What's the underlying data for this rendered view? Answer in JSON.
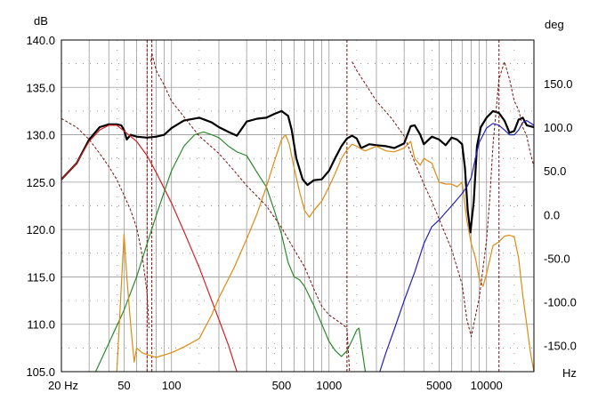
{
  "chart_data": {
    "type": "line",
    "title": "",
    "x_axis": {
      "scale": "log",
      "unit_label": "Hz",
      "range": [
        20,
        20000
      ],
      "tick_labels": [
        {
          "value": 20,
          "label": "20 Hz"
        },
        {
          "value": 50,
          "label": "50"
        },
        {
          "value": 100,
          "label": "100"
        },
        {
          "value": 500,
          "label": "500"
        },
        {
          "value": 1000,
          "label": "1000"
        },
        {
          "value": 5000,
          "label": "5000"
        },
        {
          "value": 10000,
          "label": "10000"
        }
      ]
    },
    "y_left": {
      "unit_label": "dB",
      "range": [
        105,
        140
      ],
      "tick_labels": [
        {
          "value": 140,
          "label": "140.0"
        },
        {
          "value": 135,
          "label": "135.0"
        },
        {
          "value": 130,
          "label": "130.0"
        },
        {
          "value": 125,
          "label": "125.0"
        },
        {
          "value": 120,
          "label": "120.0"
        },
        {
          "value": 115,
          "label": "115.0"
        },
        {
          "value": 110,
          "label": "110.0"
        },
        {
          "value": 105,
          "label": "105.0"
        }
      ]
    },
    "y_right": {
      "unit_label": "deg",
      "range": [
        -180,
        200
      ],
      "tick_labels": [
        {
          "value": 150,
          "label": "150.0"
        },
        {
          "value": 100,
          "label": "100.0"
        },
        {
          "value": 50,
          "label": "50.0"
        },
        {
          "value": 0,
          "label": "0.0"
        },
        {
          "value": -50,
          "label": "-50.0"
        },
        {
          "value": -100,
          "label": "-100.0"
        },
        {
          "value": -150,
          "label": "-150.0"
        }
      ]
    },
    "grid": true,
    "markers_hz": [
      70,
      75,
      1300,
      12000
    ],
    "series": [
      {
        "color": "#000000",
        "axis": "left",
        "style": "solid",
        "width": 2.2,
        "points": [
          [
            20,
            125.3
          ],
          [
            25,
            127
          ],
          [
            30,
            129.5
          ],
          [
            35,
            130.8
          ],
          [
            40,
            131.1
          ],
          [
            45,
            131.1
          ],
          [
            48,
            131.0
          ],
          [
            50,
            130.5
          ],
          [
            52,
            129.5
          ],
          [
            55,
            130.0
          ],
          [
            60,
            129.8
          ],
          [
            70,
            129.7
          ],
          [
            80,
            129.8
          ],
          [
            90,
            130.0
          ],
          [
            100,
            130.7
          ],
          [
            120,
            131.5
          ],
          [
            150,
            131.8
          ],
          [
            180,
            131.3
          ],
          [
            200,
            130.8
          ],
          [
            230,
            130.3
          ],
          [
            260,
            129.9
          ],
          [
            300,
            131.4
          ],
          [
            350,
            131.7
          ],
          [
            400,
            131.8
          ],
          [
            450,
            132.2
          ],
          [
            500,
            132.5
          ],
          [
            550,
            132.0
          ],
          [
            580,
            130.5
          ],
          [
            620,
            127.5
          ],
          [
            680,
            125.3
          ],
          [
            730,
            124.7
          ],
          [
            800,
            125.2
          ],
          [
            900,
            125.3
          ],
          [
            1000,
            126.2
          ],
          [
            1100,
            127.6
          ],
          [
            1200,
            128.8
          ],
          [
            1300,
            129.6
          ],
          [
            1400,
            129.9
          ],
          [
            1500,
            129.6
          ],
          [
            1600,
            128.6
          ],
          [
            1700,
            128.8
          ],
          [
            1800,
            129.0
          ],
          [
            2000,
            128.9
          ],
          [
            2300,
            128.8
          ],
          [
            2600,
            128.6
          ],
          [
            3000,
            129.1
          ],
          [
            3300,
            130.9
          ],
          [
            3500,
            131.0
          ],
          [
            3800,
            130.0
          ],
          [
            4000,
            129.0
          ],
          [
            4500,
            129.8
          ],
          [
            5000,
            129.5
          ],
          [
            5500,
            128.9
          ],
          [
            6000,
            129.7
          ],
          [
            6500,
            129.5
          ],
          [
            7000,
            129.0
          ],
          [
            7300,
            126.5
          ],
          [
            7600,
            122.0
          ],
          [
            7900,
            119.7
          ],
          [
            8300,
            123.0
          ],
          [
            8700,
            128.8
          ],
          [
            9200,
            130.8
          ],
          [
            10000,
            131.8
          ],
          [
            11000,
            132.5
          ],
          [
            12000,
            132.3
          ],
          [
            13000,
            131.5
          ],
          [
            14000,
            130.2
          ],
          [
            15000,
            130.4
          ],
          [
            16000,
            131.6
          ],
          [
            17000,
            131.8
          ],
          [
            18000,
            131.0
          ],
          [
            20000,
            130.8
          ]
        ]
      },
      {
        "color": "#d62020",
        "axis": "left",
        "style": "solid",
        "width": 1.2,
        "points": [
          [
            20,
            125.3
          ],
          [
            25,
            127.0
          ],
          [
            30,
            129.3
          ],
          [
            35,
            130.5
          ],
          [
            40,
            131.0
          ],
          [
            45,
            131.0
          ],
          [
            50,
            130.4
          ],
          [
            60,
            129.3
          ],
          [
            70,
            127.8
          ],
          [
            80,
            126.0
          ],
          [
            100,
            122.8
          ],
          [
            120,
            119.8
          ],
          [
            150,
            116.0
          ],
          [
            180,
            112.5
          ],
          [
            200,
            110.5
          ],
          [
            230,
            107.8
          ],
          [
            260,
            105.0
          ]
        ]
      },
      {
        "color": "#2a8a2a",
        "axis": "left",
        "style": "solid",
        "width": 1.2,
        "points": [
          [
            33,
            105.0
          ],
          [
            40,
            108.0
          ],
          [
            50,
            111.5
          ],
          [
            60,
            115.0
          ],
          [
            70,
            118.5
          ],
          [
            80,
            121.5
          ],
          [
            90,
            124.0
          ],
          [
            100,
            126.2
          ],
          [
            120,
            128.8
          ],
          [
            140,
            130.0
          ],
          [
            160,
            130.3
          ],
          [
            180,
            130.0
          ],
          [
            200,
            129.7
          ],
          [
            230,
            128.8
          ],
          [
            260,
            128.2
          ],
          [
            300,
            127.8
          ],
          [
            350,
            126.0
          ],
          [
            400,
            124.5
          ],
          [
            450,
            122.0
          ],
          [
            500,
            119.5
          ],
          [
            550,
            116.5
          ],
          [
            600,
            115.0
          ],
          [
            650,
            114.7
          ],
          [
            700,
            114.0
          ],
          [
            800,
            112.0
          ],
          [
            900,
            110.0
          ],
          [
            1000,
            108.2
          ],
          [
            1100,
            107.2
          ],
          [
            1200,
            106.6
          ],
          [
            1300,
            107.2
          ],
          [
            1400,
            108.3
          ],
          [
            1500,
            109.4
          ],
          [
            1550,
            109.6
          ],
          [
            1600,
            108.0
          ],
          [
            1700,
            105.0
          ]
        ]
      },
      {
        "color": "#e08a10",
        "axis": "left",
        "style": "solid",
        "width": 1.2,
        "points": [
          [
            45,
            105.0
          ],
          [
            48,
            114.0
          ],
          [
            50,
            119.5
          ],
          [
            52,
            115.0
          ],
          [
            55,
            110.0
          ],
          [
            58,
            106.0
          ],
          [
            60,
            107.5
          ],
          [
            65,
            107.0
          ],
          [
            70,
            106.8
          ],
          [
            80,
            106.5
          ],
          [
            100,
            107.0
          ],
          [
            120,
            107.6
          ],
          [
            150,
            108.5
          ],
          [
            180,
            111.0
          ],
          [
            200,
            112.8
          ],
          [
            250,
            116.0
          ],
          [
            300,
            119.0
          ],
          [
            350,
            121.7
          ],
          [
            400,
            124.5
          ],
          [
            450,
            127.2
          ],
          [
            500,
            129.5
          ],
          [
            530,
            130.0
          ],
          [
            560,
            129.0
          ],
          [
            600,
            126.5
          ],
          [
            650,
            124.0
          ],
          [
            700,
            122.0
          ],
          [
            750,
            121.3
          ],
          [
            800,
            122.0
          ],
          [
            900,
            123.0
          ],
          [
            1000,
            124.5
          ],
          [
            1100,
            126.0
          ],
          [
            1200,
            127.5
          ],
          [
            1300,
            128.4
          ],
          [
            1400,
            129.0
          ],
          [
            1500,
            128.8
          ],
          [
            1600,
            128.5
          ],
          [
            1700,
            128.3
          ],
          [
            2000,
            128.8
          ],
          [
            2300,
            128.3
          ],
          [
            2600,
            128.2
          ],
          [
            3000,
            128.6
          ],
          [
            3300,
            129.3
          ],
          [
            3500,
            127.5
          ],
          [
            3800,
            126.8
          ],
          [
            4000,
            127.5
          ],
          [
            4500,
            127.0
          ],
          [
            5000,
            125.0
          ],
          [
            5500,
            124.8
          ],
          [
            6000,
            124.8
          ],
          [
            6500,
            124.5
          ],
          [
            7000,
            125.0
          ],
          [
            7500,
            121.0
          ],
          [
            8000,
            118.5
          ],
          [
            8500,
            117.0
          ],
          [
            9000,
            114.8
          ],
          [
            9500,
            114.0
          ],
          [
            10000,
            115.3
          ],
          [
            11000,
            118.3
          ],
          [
            12000,
            118.7
          ],
          [
            13000,
            119.3
          ],
          [
            14000,
            119.4
          ],
          [
            15000,
            119.2
          ],
          [
            16000,
            117.0
          ],
          [
            17000,
            113.0
          ],
          [
            18000,
            110.0
          ],
          [
            19000,
            107.0
          ],
          [
            20000,
            105.0
          ]
        ]
      },
      {
        "color": "#2020c0",
        "axis": "left",
        "style": "solid",
        "width": 1.2,
        "points": [
          [
            2100,
            105.0
          ],
          [
            2300,
            107.0
          ],
          [
            2600,
            109.5
          ],
          [
            3000,
            112.5
          ],
          [
            3500,
            115.5
          ],
          [
            4000,
            118.5
          ],
          [
            4500,
            120.3
          ],
          [
            5000,
            121.0
          ],
          [
            5500,
            121.8
          ],
          [
            6000,
            122.5
          ],
          [
            7000,
            123.8
          ],
          [
            7500,
            124.5
          ],
          [
            8000,
            125.5
          ],
          [
            8500,
            127.5
          ],
          [
            9000,
            129.2
          ],
          [
            10000,
            130.7
          ],
          [
            11000,
            131.2
          ],
          [
            12000,
            131.0
          ],
          [
            13000,
            130.5
          ],
          [
            14000,
            130.0
          ],
          [
            15000,
            130.0
          ],
          [
            16000,
            130.5
          ],
          [
            17000,
            131.3
          ],
          [
            18000,
            131.5
          ],
          [
            20000,
            131.0
          ]
        ]
      },
      {
        "color": "#7a1010",
        "axis": "right",
        "style": "dashed",
        "width": 1.0,
        "points": [
          [
            20,
            110
          ],
          [
            25,
            100
          ],
          [
            30,
            86
          ],
          [
            35,
            70
          ],
          [
            40,
            55
          ],
          [
            45,
            40
          ],
          [
            50,
            22
          ],
          [
            55,
            5
          ],
          [
            60,
            -15
          ],
          [
            65,
            -45
          ],
          [
            70,
            -90
          ],
          [
            72,
            -130
          ],
          [
            74,
            175
          ],
          [
            75,
            185
          ],
          [
            80,
            165
          ],
          [
            90,
            148
          ],
          [
            100,
            130
          ],
          [
            120,
            112
          ],
          [
            150,
            90
          ],
          [
            200,
            70
          ],
          [
            250,
            50
          ],
          [
            300,
            33
          ],
          [
            400,
            10
          ],
          [
            500,
            -15
          ],
          [
            600,
            -40
          ],
          [
            700,
            -60
          ],
          [
            800,
            -85
          ],
          [
            900,
            -105
          ],
          [
            1000,
            -115
          ],
          [
            1200,
            -125
          ],
          [
            1300,
            -130
          ],
          [
            1350,
            -180
          ],
          [
            1400,
            175
          ],
          [
            1500,
            165
          ],
          [
            1700,
            150
          ],
          [
            2000,
            130
          ],
          [
            2500,
            110
          ],
          [
            3000,
            90
          ],
          [
            3500,
            60
          ],
          [
            4000,
            35
          ],
          [
            4500,
            15
          ],
          [
            5000,
            -5
          ],
          [
            6000,
            -40
          ],
          [
            7000,
            -80
          ],
          [
            7500,
            -120
          ],
          [
            8000,
            -140
          ],
          [
            9000,
            -95
          ],
          [
            10000,
            -30
          ],
          [
            10500,
            20
          ],
          [
            11000,
            80
          ],
          [
            12000,
            155
          ],
          [
            13000,
            175
          ],
          [
            14000,
            155
          ],
          [
            15000,
            130
          ],
          [
            16000,
            120
          ],
          [
            17000,
            100
          ],
          [
            18000,
            90
          ],
          [
            19000,
            70
          ],
          [
            20000,
            55
          ]
        ]
      }
    ]
  }
}
